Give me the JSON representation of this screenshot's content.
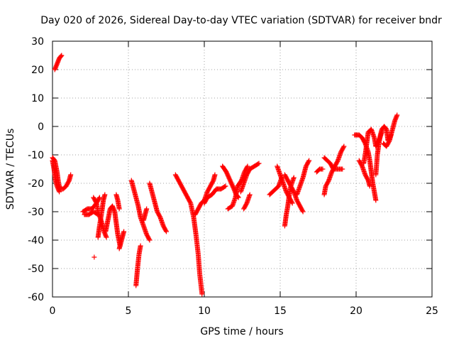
{
  "chart_data": {
    "type": "scatter",
    "title": "Day 020 of 2026, Sidereal Day-to-day VTEC variation (SDTVAR) for receiver bndr",
    "xlabel": "GPS time / hours",
    "ylabel": "SDTVAR / TECUs",
    "xlim": [
      0,
      25
    ],
    "ylim": [
      -60,
      30
    ],
    "xticks": [
      0,
      5,
      10,
      15,
      20,
      25
    ],
    "yticks": [
      -60,
      -50,
      -40,
      -30,
      -20,
      -10,
      0,
      10,
      20,
      30
    ],
    "grid": true,
    "marker": "plus",
    "marker_color": "#ff0000",
    "series": [
      {
        "name": "SDTVAR",
        "segments": [
          [
            [
              0.0,
              -11
            ],
            [
              0.15,
              -12
            ],
            [
              0.3,
              -16
            ],
            [
              0.4,
              -20
            ],
            [
              0.5,
              -22
            ],
            [
              0.7,
              -22
            ],
            [
              0.9,
              -21
            ],
            [
              1.1,
              -19
            ],
            [
              1.2,
              -17
            ]
          ],
          [
            [
              0.0,
              -12
            ],
            [
              0.1,
              -15
            ],
            [
              0.2,
              -19
            ],
            [
              0.3,
              -21
            ],
            [
              0.45,
              -23
            ]
          ],
          [
            [
              0.15,
              20
            ],
            [
              0.3,
              22
            ],
            [
              0.45,
              24
            ],
            [
              0.6,
              25
            ]
          ],
          [
            [
              2.0,
              -30
            ],
            [
              2.3,
              -29
            ],
            [
              2.6,
              -29
            ],
            [
              2.9,
              -27
            ],
            [
              3.1,
              -25
            ]
          ],
          [
            [
              2.1,
              -31
            ],
            [
              2.4,
              -31
            ],
            [
              2.7,
              -30
            ],
            [
              3.0,
              -31
            ]
          ],
          [
            [
              2.7,
              -25
            ],
            [
              2.9,
              -27
            ],
            [
              3.0,
              -30
            ],
            [
              3.2,
              -33
            ],
            [
              3.4,
              -37
            ],
            [
              3.55,
              -39
            ]
          ],
          [
            [
              3.0,
              -39
            ],
            [
              3.1,
              -35
            ],
            [
              3.25,
              -30
            ],
            [
              3.35,
              -26
            ],
            [
              3.45,
              -24
            ]
          ],
          [
            [
              2.75,
              -46
            ]
          ],
          [
            [
              3.5,
              -37
            ],
            [
              3.65,
              -33
            ],
            [
              3.8,
              -29
            ],
            [
              3.95,
              -28
            ],
            [
              4.1,
              -30
            ],
            [
              4.2,
              -34
            ],
            [
              4.3,
              -38
            ],
            [
              4.45,
              -42
            ]
          ],
          [
            [
              4.4,
              -43
            ],
            [
              4.5,
              -41
            ],
            [
              4.6,
              -39
            ],
            [
              4.7,
              -37
            ]
          ],
          [
            [
              4.2,
              -24
            ],
            [
              4.3,
              -26
            ],
            [
              4.4,
              -29
            ]
          ],
          [
            [
              5.2,
              -19
            ],
            [
              5.35,
              -22
            ],
            [
              5.5,
              -25
            ],
            [
              5.65,
              -28
            ],
            [
              5.8,
              -32
            ],
            [
              6.0,
              -35
            ],
            [
              6.2,
              -38
            ],
            [
              6.4,
              -40
            ]
          ],
          [
            [
              5.5,
              -56
            ],
            [
              5.6,
              -50
            ],
            [
              5.7,
              -45
            ],
            [
              5.8,
              -42
            ]
          ],
          [
            [
              6.0,
              -33
            ],
            [
              6.1,
              -31
            ],
            [
              6.2,
              -29
            ]
          ],
          [
            [
              6.4,
              -20
            ],
            [
              6.55,
              -23
            ],
            [
              6.7,
              -26
            ],
            [
              6.9,
              -30
            ],
            [
              7.1,
              -32
            ],
            [
              7.3,
              -35
            ],
            [
              7.5,
              -37
            ]
          ],
          [
            [
              8.1,
              -17
            ],
            [
              8.3,
              -19
            ],
            [
              8.5,
              -21
            ],
            [
              8.7,
              -23
            ],
            [
              8.9,
              -25
            ],
            [
              9.1,
              -27
            ],
            [
              9.3,
              -32
            ],
            [
              9.45,
              -38
            ],
            [
              9.6,
              -45
            ],
            [
              9.7,
              -52
            ],
            [
              9.85,
              -59
            ]
          ],
          [
            [
              9.4,
              -31
            ],
            [
              9.6,
              -29
            ],
            [
              9.8,
              -27
            ],
            [
              10.0,
              -26
            ],
            [
              10.2,
              -23
            ],
            [
              10.4,
              -21
            ],
            [
              10.6,
              -19
            ],
            [
              10.7,
              -17
            ]
          ],
          [
            [
              10.0,
              -27
            ],
            [
              10.2,
              -25
            ],
            [
              10.5,
              -24
            ],
            [
              10.8,
              -22
            ],
            [
              11.1,
              -22
            ],
            [
              11.4,
              -21
            ]
          ],
          [
            [
              11.2,
              -14
            ],
            [
              11.45,
              -16
            ],
            [
              11.7,
              -19
            ],
            [
              11.95,
              -22
            ],
            [
              12.1,
              -24
            ],
            [
              12.25,
              -25
            ]
          ],
          [
            [
              11.55,
              -29
            ],
            [
              11.85,
              -28
            ],
            [
              12.05,
              -25
            ],
            [
              12.2,
              -21
            ],
            [
              12.45,
              -19
            ],
            [
              12.65,
              -16
            ],
            [
              12.85,
              -14
            ]
          ],
          [
            [
              12.4,
              -23
            ],
            [
              12.6,
              -20
            ],
            [
              12.8,
              -17
            ],
            [
              13.0,
              -15
            ],
            [
              13.3,
              -14
            ],
            [
              13.6,
              -13
            ]
          ],
          [
            [
              12.6,
              -29
            ],
            [
              12.8,
              -27
            ],
            [
              13.0,
              -24
            ]
          ],
          [
            [
              14.3,
              -24
            ],
            [
              14.5,
              -23
            ],
            [
              14.7,
              -22
            ],
            [
              14.9,
              -21
            ],
            [
              15.1,
              -18
            ]
          ],
          [
            [
              14.8,
              -14
            ],
            [
              15.0,
              -17
            ],
            [
              15.2,
              -20
            ],
            [
              15.4,
              -23
            ],
            [
              15.6,
              -25
            ],
            [
              15.8,
              -27
            ]
          ],
          [
            [
              15.3,
              -35
            ],
            [
              15.4,
              -31
            ],
            [
              15.5,
              -28
            ],
            [
              15.6,
              -24
            ],
            [
              15.7,
              -21
            ],
            [
              15.9,
              -18
            ]
          ],
          [
            [
              15.3,
              -17
            ],
            [
              15.5,
              -19
            ],
            [
              15.7,
              -21
            ],
            [
              15.9,
              -23
            ],
            [
              16.1,
              -26
            ],
            [
              16.3,
              -28
            ],
            [
              16.5,
              -30
            ]
          ],
          [
            [
              16.1,
              -24
            ],
            [
              16.3,
              -21
            ],
            [
              16.5,
              -18
            ],
            [
              16.7,
              -14
            ],
            [
              16.9,
              -12
            ]
          ],
          [
            [
              17.4,
              -16
            ],
            [
              17.6,
              -15
            ],
            [
              17.8,
              -15
            ]
          ],
          [
            [
              17.9,
              -24
            ],
            [
              18.0,
              -21
            ],
            [
              18.2,
              -19
            ],
            [
              18.4,
              -16
            ],
            [
              18.6,
              -14
            ],
            [
              18.8,
              -12
            ],
            [
              19.0,
              -9
            ],
            [
              19.2,
              -7
            ]
          ],
          [
            [
              17.9,
              -11
            ],
            [
              18.1,
              -12
            ],
            [
              18.3,
              -13
            ],
            [
              18.5,
              -15
            ],
            [
              18.7,
              -15
            ],
            [
              18.9,
              -15
            ],
            [
              19.1,
              -15
            ]
          ],
          [
            [
              19.9,
              -3
            ],
            [
              20.2,
              -3
            ],
            [
              20.4,
              -4
            ],
            [
              20.6,
              -6
            ],
            [
              20.8,
              -9
            ],
            [
              20.9,
              -12
            ],
            [
              21.0,
              -16
            ],
            [
              21.1,
              -20
            ],
            [
              21.2,
              -23
            ],
            [
              21.3,
              -26
            ]
          ],
          [
            [
              20.2,
              -12
            ],
            [
              20.4,
              -14
            ],
            [
              20.6,
              -17
            ],
            [
              20.8,
              -19
            ],
            [
              20.9,
              -21
            ]
          ],
          [
            [
              20.5,
              -13
            ],
            [
              20.6,
              -10
            ],
            [
              20.7,
              -6
            ],
            [
              20.8,
              -2
            ],
            [
              21.0,
              -1
            ],
            [
              21.2,
              -4
            ],
            [
              21.3,
              -7
            ],
            [
              21.5,
              -5
            ],
            [
              21.7,
              -2
            ]
          ],
          [
            [
              21.3,
              -17
            ],
            [
              21.4,
              -10
            ],
            [
              21.5,
              -6
            ],
            [
              21.6,
              -3
            ],
            [
              21.7,
              -1
            ],
            [
              21.85,
              0
            ],
            [
              22.0,
              -1
            ],
            [
              22.1,
              -5
            ],
            [
              22.3,
              -3
            ]
          ],
          [
            [
              21.8,
              -6
            ],
            [
              22.0,
              -7
            ],
            [
              22.2,
              -5
            ],
            [
              22.4,
              -1
            ],
            [
              22.55,
              2
            ],
            [
              22.7,
              4
            ]
          ]
        ]
      }
    ]
  }
}
